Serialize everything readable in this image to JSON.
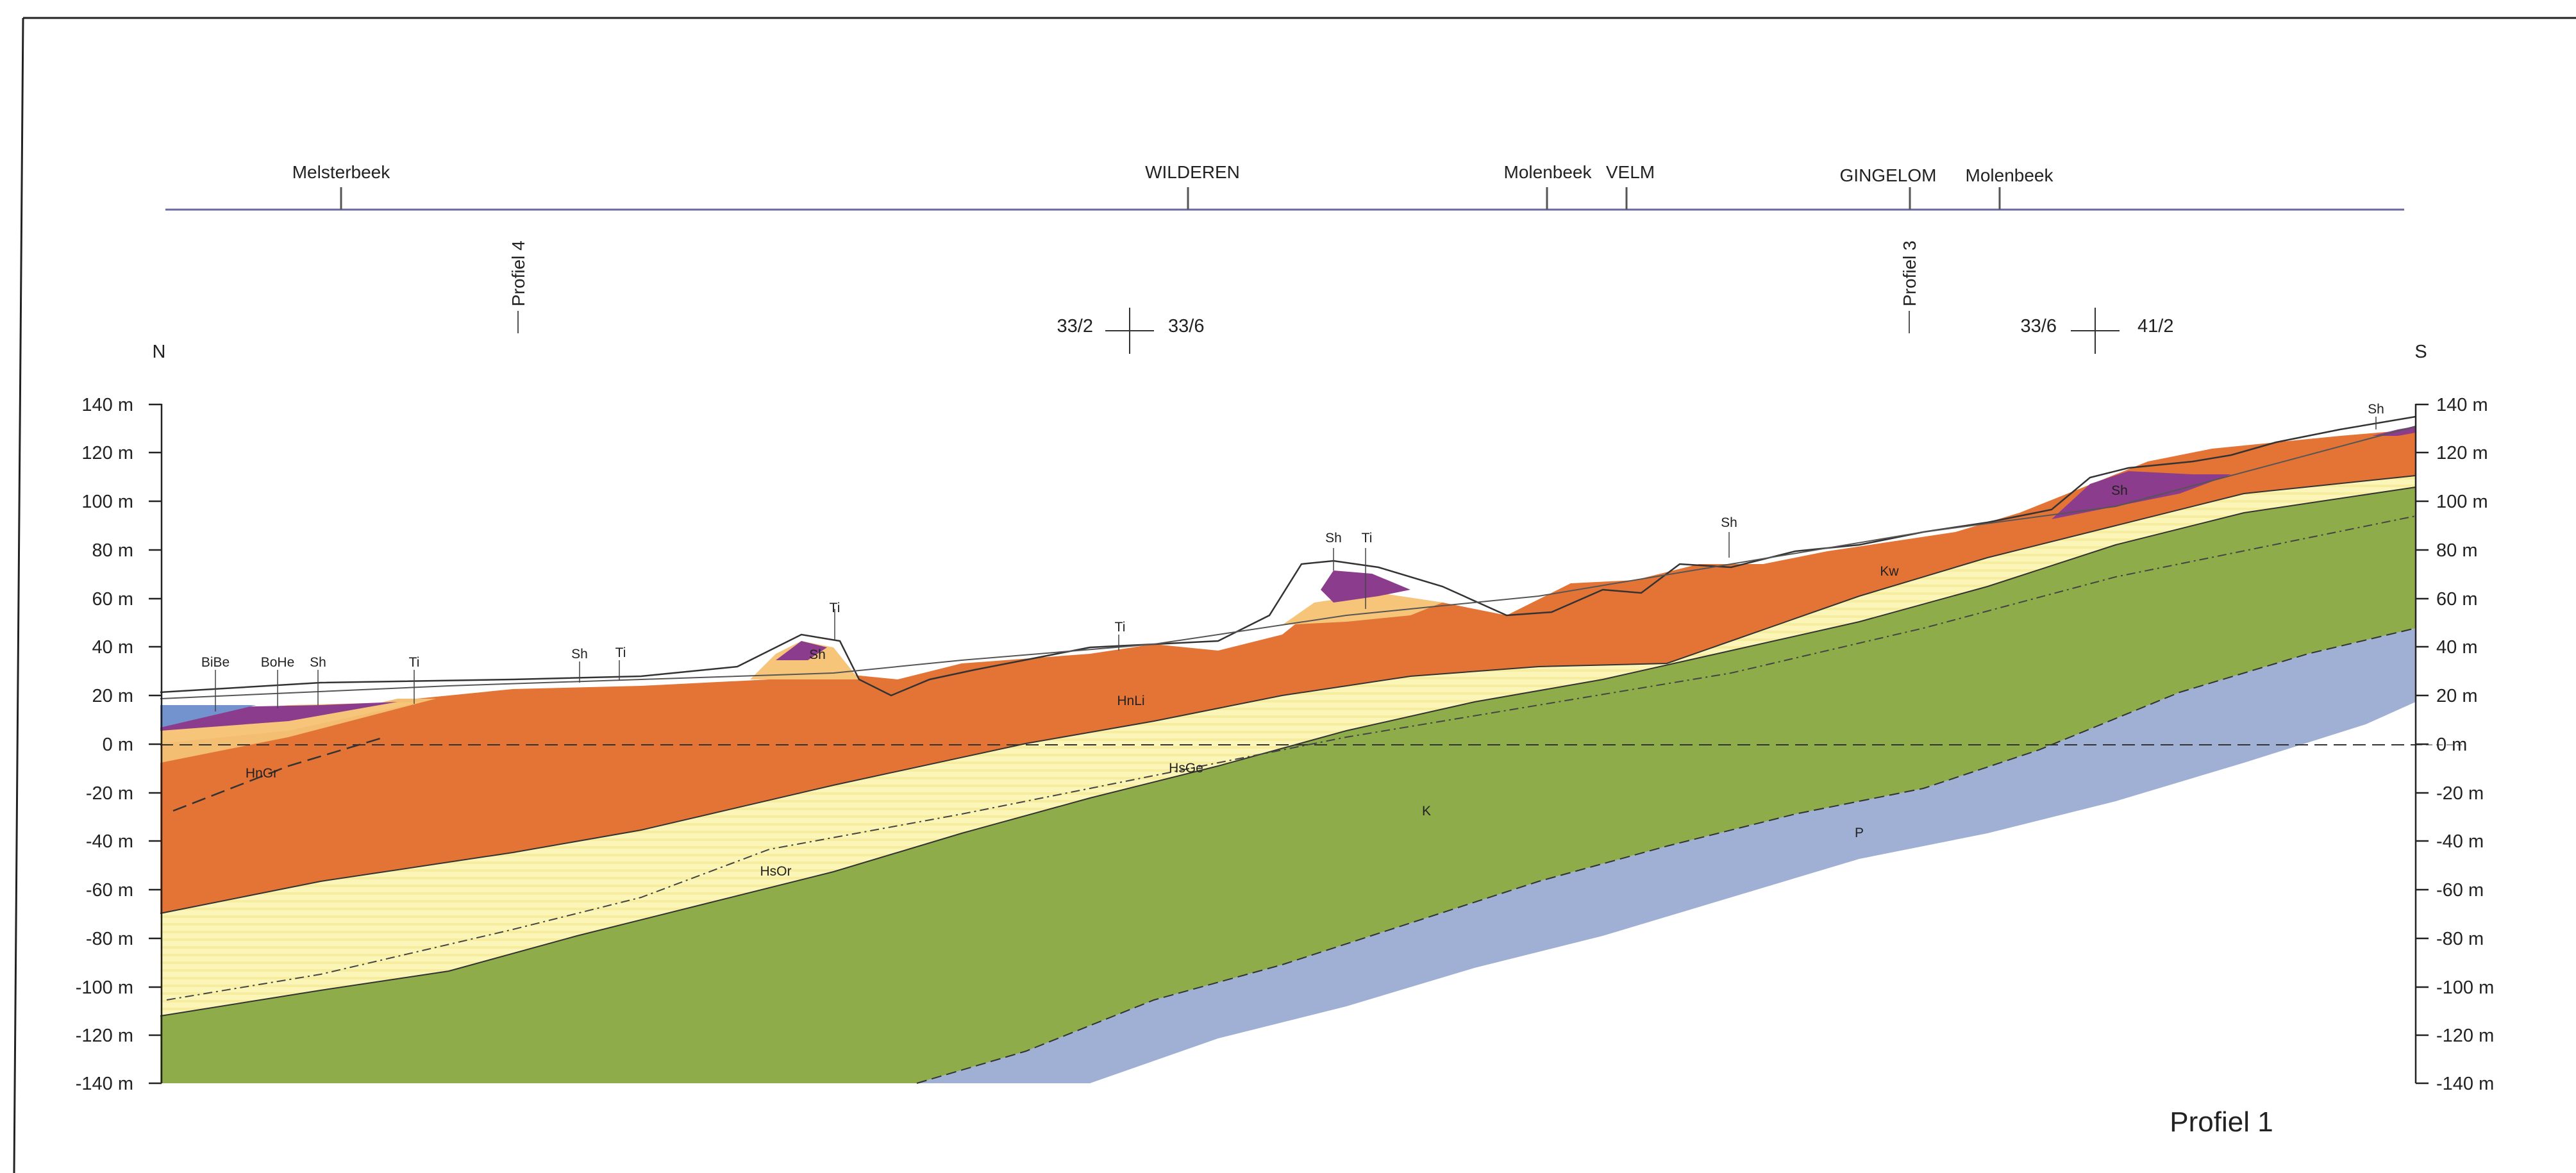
{
  "top_labels": {
    "melsterbeek": "Melsterbeek",
    "wilderen": "WILDEREN",
    "molenbeek_1": "Molenbeek",
    "velm": "VELM",
    "gingelom": "GINGELOM",
    "molenbeek_2": "Molenbeek"
  },
  "profile_refs": {
    "profiel_4": "Profiel 4",
    "profiel_3": "Profiel 3"
  },
  "map_sheets": {
    "left_a": "33/2",
    "left_b": "33/6",
    "right_a": "33/6",
    "right_b": "41/2"
  },
  "compass": {
    "north": "N",
    "south": "S"
  },
  "axis": {
    "left_ticks": [
      "140 m",
      "120 m",
      "100 m",
      "80 m",
      "60 m",
      "40 m",
      "20 m",
      "0 m",
      "-20 m",
      "-40 m",
      "-60 m",
      "-80 m",
      "-100 m",
      "-120 m",
      "-140 m"
    ],
    "right_ticks": [
      "140 m",
      "120 m",
      "100 m",
      "80 m",
      "60 m",
      "40 m",
      "20 m",
      "0 m",
      "-20 m",
      "-40 m",
      "-60 m",
      "-80 m",
      "-100 m",
      "-120 m",
      "-140 m"
    ]
  },
  "unit_labels": {
    "bibe": "BiBe",
    "bohe": "BoHe",
    "sh_1": "Sh",
    "ti_1": "Ti",
    "sh_2": "Sh",
    "ti_2": "Ti",
    "sh_3": "Sh",
    "ti_3": "Ti",
    "ti_4": "Ti",
    "sh_4": "Sh",
    "ti_5": "Ti",
    "sh_5": "Sh",
    "kw": "Kw",
    "sh_6": "Sh",
    "sh_7": "Sh",
    "hngr": "HnGr",
    "hnli": "HnLi",
    "hsge": "HsGe",
    "hsor": "HsOr",
    "k": "K",
    "p": "P"
  },
  "title": "Profiel 1",
  "colors": {
    "P": "#9fb0d4",
    "K": "#8eac4a",
    "HsOr_HsGe": "#fbf6b8",
    "HnLi": "#e47336",
    "HnGr": "#f3bd72",
    "Ti": "#f6c57a",
    "Sh": "#8c3c8c",
    "BoHe": "#ef9b70",
    "BiBe": "#7393cf"
  }
}
